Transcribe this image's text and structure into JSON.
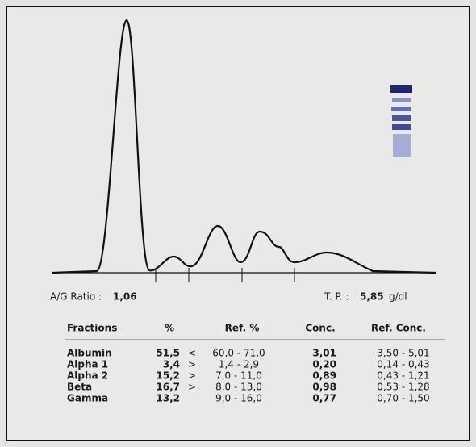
{
  "header": {
    "ag_label": "A/G Ratio :",
    "ag_value": "1,06",
    "tp_label": "T. P. :",
    "tp_value": "5,85",
    "tp_unit": "g/dl"
  },
  "table": {
    "columns": [
      "Fractions",
      "%",
      "Ref. %",
      "Conc.",
      "Ref. Conc."
    ],
    "rows": [
      {
        "name": "Albumin",
        "pct": "51,5",
        "flag": "<",
        "ref_pct": "60,0 - 71,0",
        "conc": "3,01",
        "ref_conc": "3,50 - 5,01"
      },
      {
        "name": "Alpha 1",
        "pct": "3,4",
        "flag": ">",
        "ref_pct": "1,4 -  2,9",
        "conc": "0,20",
        "ref_conc": "0,14 - 0,43"
      },
      {
        "name": "Alpha 2",
        "pct": "15,2",
        "flag": ">",
        "ref_pct": "7,0 - 11,0",
        "conc": "0,89",
        "ref_conc": "0,43 - 1,21"
      },
      {
        "name": "Beta",
        "pct": "16,7",
        "flag": ">",
        "ref_pct": "8,0 - 13,0",
        "conc": "0,98",
        "ref_conc": "0,53 - 1,28"
      },
      {
        "name": "Gamma",
        "pct": "13,2",
        "ref_pct": "9,0 - 16,0",
        "conc": "0,77",
        "ref_conc": "0,70 - 1,50"
      }
    ]
  }
}
